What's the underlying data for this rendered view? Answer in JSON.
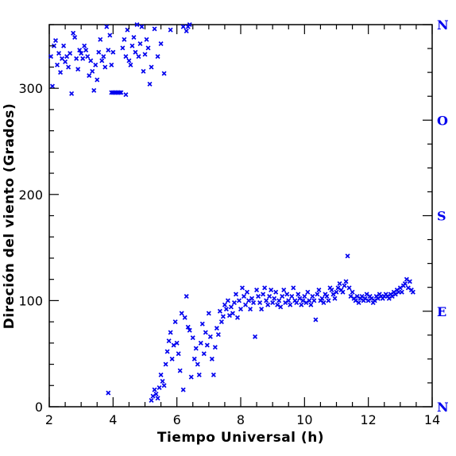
{
  "chart_data": {
    "type": "scatter",
    "title": "",
    "xlabel": "Tiempo Universal (h)",
    "ylabel": "Direción del viento (Grados)",
    "xlim": [
      2,
      14
    ],
    "ylim": [
      0,
      360
    ],
    "xticks": [
      2,
      4,
      6,
      8,
      10,
      12,
      14
    ],
    "yticks": [
      0,
      100,
      200,
      300
    ],
    "right_axis_labels": [
      {
        "value": 0,
        "label": "N"
      },
      {
        "value": 90,
        "label": "E"
      },
      {
        "value": 180,
        "label": "S"
      },
      {
        "value": 270,
        "label": "O"
      },
      {
        "value": 360,
        "label": "N"
      }
    ],
    "grid": false,
    "legend": false,
    "colors": {
      "points": "#0000ee",
      "axes": "#000000",
      "compass": "#0000ee"
    },
    "marker": "x",
    "series": [
      {
        "points": [
          [
            2.05,
            330
          ],
          [
            2.1,
            302
          ],
          [
            2.15,
            340
          ],
          [
            2.2,
            345
          ],
          [
            2.25,
            322
          ],
          [
            2.3,
            333
          ],
          [
            2.35,
            315
          ],
          [
            2.4,
            328
          ],
          [
            2.45,
            340
          ],
          [
            2.5,
            325
          ],
          [
            2.55,
            330
          ],
          [
            2.6,
            320
          ],
          [
            2.65,
            333
          ],
          [
            2.7,
            295
          ],
          [
            2.75,
            352
          ],
          [
            2.8,
            348
          ],
          [
            2.85,
            328
          ],
          [
            2.9,
            318
          ],
          [
            2.95,
            336
          ],
          [
            3.0,
            333
          ],
          [
            3.05,
            328
          ],
          [
            3.1,
            340
          ],
          [
            3.15,
            336
          ],
          [
            3.2,
            330
          ],
          [
            3.25,
            312
          ],
          [
            3.3,
            326
          ],
          [
            3.35,
            316
          ],
          [
            3.4,
            298
          ],
          [
            3.45,
            322
          ],
          [
            3.5,
            308
          ],
          [
            3.55,
            334
          ],
          [
            3.6,
            346
          ],
          [
            3.65,
            326
          ],
          [
            3.7,
            330
          ],
          [
            3.75,
            320
          ],
          [
            3.8,
            358
          ],
          [
            3.85,
            336
          ],
          [
            3.9,
            350
          ],
          [
            3.95,
            322
          ],
          [
            4.0,
            334
          ],
          [
            4.3,
            338
          ],
          [
            4.35,
            346
          ],
          [
            4.4,
            330
          ],
          [
            4.45,
            355
          ],
          [
            4.5,
            326
          ],
          [
            4.55,
            322
          ],
          [
            4.6,
            340
          ],
          [
            4.65,
            348
          ],
          [
            4.7,
            334
          ],
          [
            4.75,
            360
          ],
          [
            4.8,
            330
          ],
          [
            4.85,
            342
          ],
          [
            4.9,
            358
          ],
          [
            4.95,
            316
          ],
          [
            5.0,
            332
          ],
          [
            5.05,
            346
          ],
          [
            5.1,
            338
          ],
          [
            5.15,
            304
          ],
          [
            5.2,
            320
          ],
          [
            5.3,
            356
          ],
          [
            5.4,
            330
          ],
          [
            5.5,
            342
          ],
          [
            5.6,
            314
          ],
          [
            5.8,
            355
          ],
          [
            6.2,
            358
          ],
          [
            6.3,
            354
          ],
          [
            6.35,
            358
          ],
          [
            6.4,
            360
          ],
          [
            3.95,
            296
          ],
          [
            4.0,
            296
          ],
          [
            4.05,
            296
          ],
          [
            4.1,
            296
          ],
          [
            4.15,
            296
          ],
          [
            4.2,
            296
          ],
          [
            4.25,
            296
          ],
          [
            4.4,
            294
          ],
          [
            3.85,
            13
          ],
          [
            5.2,
            6
          ],
          [
            5.25,
            10
          ],
          [
            5.3,
            16
          ],
          [
            5.35,
            12
          ],
          [
            5.4,
            8
          ],
          [
            5.45,
            18
          ],
          [
            5.5,
            30
          ],
          [
            5.55,
            24
          ],
          [
            5.6,
            20
          ],
          [
            5.65,
            40
          ],
          [
            5.7,
            52
          ],
          [
            5.75,
            62
          ],
          [
            5.8,
            70
          ],
          [
            5.85,
            45
          ],
          [
            5.9,
            58
          ],
          [
            5.95,
            80
          ],
          [
            6.0,
            60
          ],
          [
            6.05,
            50
          ],
          [
            6.1,
            34
          ],
          [
            6.15,
            88
          ],
          [
            6.2,
            16
          ],
          [
            6.25,
            84
          ],
          [
            6.3,
            104
          ],
          [
            6.35,
            75
          ],
          [
            6.4,
            72
          ],
          [
            6.45,
            28
          ],
          [
            6.5,
            65
          ],
          [
            6.55,
            45
          ],
          [
            6.6,
            55
          ],
          [
            6.65,
            40
          ],
          [
            6.7,
            30
          ],
          [
            6.75,
            60
          ],
          [
            6.8,
            78
          ],
          [
            6.85,
            50
          ],
          [
            6.9,
            70
          ],
          [
            6.95,
            58
          ],
          [
            7.0,
            88
          ],
          [
            7.05,
            66
          ],
          [
            7.1,
            45
          ],
          [
            7.15,
            30
          ],
          [
            7.2,
            56
          ],
          [
            7.25,
            74
          ],
          [
            7.3,
            68
          ],
          [
            7.35,
            90
          ],
          [
            7.4,
            80
          ],
          [
            7.45,
            85
          ],
          [
            7.5,
            96
          ],
          [
            7.55,
            92
          ],
          [
            7.6,
            100
          ],
          [
            7.65,
            86
          ],
          [
            7.7,
            94
          ],
          [
            7.75,
            88
          ],
          [
            7.8,
            98
          ],
          [
            7.85,
            106
          ],
          [
            7.9,
            84
          ],
          [
            7.95,
            100
          ],
          [
            8.0,
            92
          ],
          [
            8.05,
            112
          ],
          [
            8.1,
            104
          ],
          [
            8.15,
            96
          ],
          [
            8.2,
            108
          ],
          [
            8.25,
            100
          ],
          [
            8.3,
            92
          ],
          [
            8.35,
            102
          ],
          [
            8.4,
            98
          ],
          [
            8.45,
            66
          ],
          [
            8.5,
            110
          ],
          [
            8.55,
            104
          ],
          [
            8.6,
            98
          ],
          [
            8.65,
            92
          ],
          [
            8.7,
            106
          ],
          [
            8.75,
            112
          ],
          [
            8.8,
            100
          ],
          [
            8.85,
            96
          ],
          [
            8.9,
            104
          ],
          [
            8.95,
            110
          ],
          [
            9.0,
            98
          ],
          [
            9.05,
            102
          ],
          [
            9.1,
            108
          ],
          [
            9.15,
            96
          ],
          [
            9.2,
            100
          ],
          [
            9.25,
            94
          ],
          [
            9.3,
            104
          ],
          [
            9.35,
            110
          ],
          [
            9.4,
            98
          ],
          [
            9.45,
            106
          ],
          [
            9.5,
            100
          ],
          [
            9.55,
            96
          ],
          [
            9.6,
            104
          ],
          [
            9.65,
            112
          ],
          [
            9.7,
            100
          ],
          [
            9.75,
            98
          ],
          [
            9.8,
            106
          ],
          [
            9.85,
            102
          ],
          [
            9.9,
            96
          ],
          [
            9.95,
            100
          ],
          [
            10.0,
            104
          ],
          [
            10.05,
            98
          ],
          [
            10.1,
            108
          ],
          [
            10.15,
            100
          ],
          [
            10.2,
            96
          ],
          [
            10.25,
            104
          ],
          [
            10.3,
            100
          ],
          [
            10.35,
            82
          ],
          [
            10.4,
            106
          ],
          [
            10.45,
            110
          ],
          [
            10.5,
            100
          ],
          [
            10.55,
            102
          ],
          [
            10.6,
            98
          ],
          [
            10.65,
            106
          ],
          [
            10.7,
            104
          ],
          [
            10.75,
            100
          ],
          [
            10.8,
            112
          ],
          [
            10.85,
            110
          ],
          [
            10.9,
            106
          ],
          [
            10.95,
            102
          ],
          [
            11.0,
            108
          ],
          [
            11.05,
            112
          ],
          [
            11.1,
            116
          ],
          [
            11.15,
            110
          ],
          [
            11.2,
            108
          ],
          [
            11.25,
            114
          ],
          [
            11.3,
            118
          ],
          [
            11.35,
            142
          ],
          [
            11.4,
            112
          ],
          [
            11.45,
            104
          ],
          [
            11.5,
            108
          ],
          [
            11.55,
            102
          ],
          [
            11.6,
            100
          ],
          [
            11.65,
            104
          ],
          [
            11.7,
            98
          ],
          [
            11.75,
            102
          ],
          [
            11.8,
            104
          ],
          [
            11.85,
            100
          ],
          [
            11.9,
            102
          ],
          [
            11.95,
            106
          ],
          [
            12.0,
            100
          ],
          [
            12.05,
            104
          ],
          [
            12.1,
            102
          ],
          [
            12.15,
            98
          ],
          [
            12.2,
            100
          ],
          [
            12.25,
            104
          ],
          [
            12.3,
            102
          ],
          [
            12.35,
            106
          ],
          [
            12.4,
            104
          ],
          [
            12.45,
            102
          ],
          [
            12.5,
            104
          ],
          [
            12.55,
            106
          ],
          [
            12.6,
            104
          ],
          [
            12.65,
            102
          ],
          [
            12.7,
            106
          ],
          [
            12.75,
            104
          ],
          [
            12.8,
            108
          ],
          [
            12.85,
            106
          ],
          [
            12.9,
            110
          ],
          [
            12.95,
            108
          ],
          [
            13.0,
            112
          ],
          [
            13.05,
            108
          ],
          [
            13.1,
            114
          ],
          [
            13.15,
            116
          ],
          [
            13.2,
            120
          ],
          [
            13.25,
            112
          ],
          [
            13.3,
            118
          ],
          [
            13.35,
            110
          ],
          [
            13.4,
            108
          ]
        ]
      }
    ]
  }
}
